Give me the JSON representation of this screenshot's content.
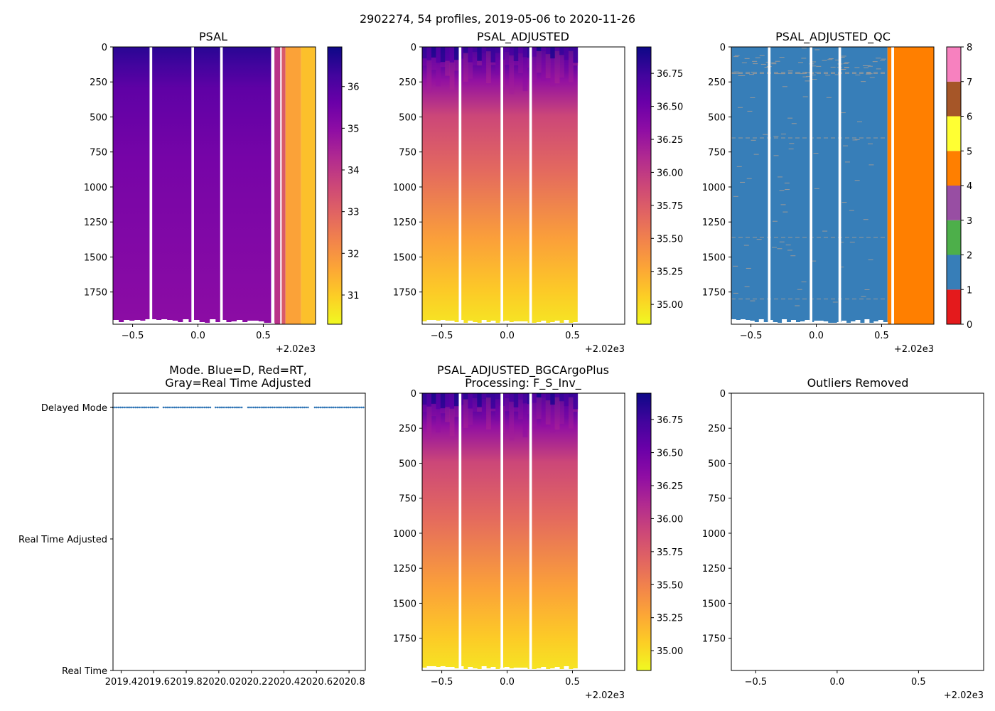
{
  "suptitle": "2902274, 54 profiles, 2019-05-06 to 2020-11-26",
  "colors": {
    "gap": "#ffffff",
    "dot": "#2e74b5",
    "qc_palette": [
      "#e41a1c",
      "#377eb8",
      "#4daf4a",
      "#984ea3",
      "#ff7f00",
      "#ffff33",
      "#a65628",
      "#f781bf",
      "#999999"
    ]
  },
  "chart_data": [
    {
      "id": "psal",
      "type": "heatmap",
      "title": "PSAL",
      "colormap": "plasma",
      "x_range": [
        -0.65,
        0.9
      ],
      "y_range": [
        0,
        1980
      ],
      "y_inverted": true,
      "x_ticks": [
        "−0.5",
        "0.0",
        "0.5"
      ],
      "x_tick_values": [
        -0.5,
        0.0,
        0.5
      ],
      "y_ticks": [
        "0",
        "250",
        "500",
        "750",
        "1000",
        "1250",
        "1500",
        "1750"
      ],
      "y_tick_values": [
        0,
        250,
        500,
        750,
        1000,
        1250,
        1500,
        1750
      ],
      "offset_label": "+2.02e3",
      "colorbar": {
        "range": [
          30.3,
          36.95
        ],
        "ticks": [
          "31",
          "32",
          "33",
          "34",
          "35",
          "36"
        ],
        "tick_values": [
          31,
          32,
          33,
          34,
          35,
          36
        ]
      },
      "gaps": [
        [
          -0.37,
          -0.35
        ],
        [
          -0.05,
          -0.03
        ],
        [
          0.17,
          0.19
        ],
        [
          0.56,
          0.585
        ],
        [
          0.63,
          0.64
        ]
      ],
      "surface_value": 36.6,
      "deep_value": 35.0,
      "fresh_segments": [
        {
          "from": 0.585,
          "to": 0.63,
          "value": 34.1
        },
        {
          "from": 0.64,
          "to": 0.67,
          "value": 33.2
        },
        {
          "from": 0.67,
          "to": 0.79,
          "value": 31.7
        },
        {
          "from": 0.79,
          "to": 0.9,
          "value": 31.2
        }
      ]
    },
    {
      "id": "psal_adjusted",
      "type": "heatmap",
      "title": "PSAL_ADJUSTED",
      "colormap": "plasma",
      "x_range": [
        -0.65,
        0.9
      ],
      "y_range": [
        0,
        1980
      ],
      "y_inverted": true,
      "x_ticks": [
        "−0.5",
        "0.0",
        "0.5"
      ],
      "x_tick_values": [
        -0.5,
        0.0,
        0.5
      ],
      "y_ticks": [
        "0",
        "250",
        "500",
        "750",
        "1000",
        "1250",
        "1500",
        "1750"
      ],
      "y_tick_values": [
        0,
        250,
        500,
        750,
        1000,
        1250,
        1500,
        1750
      ],
      "offset_label": "+2.02e3",
      "colorbar": {
        "range": [
          34.85,
          36.95
        ],
        "ticks": [
          "35.00",
          "35.25",
          "35.50",
          "35.75",
          "36.00",
          "36.25",
          "36.50",
          "36.75"
        ],
        "tick_values": [
          35.0,
          35.25,
          35.5,
          35.75,
          36.0,
          36.25,
          36.5,
          36.75
        ]
      },
      "data_x_max": 0.54,
      "gaps": [
        [
          -0.37,
          -0.35
        ],
        [
          -0.05,
          -0.03
        ],
        [
          0.17,
          0.19
        ]
      ],
      "surface_value": 36.9,
      "mid_value": 35.55,
      "deep_value": 34.95
    },
    {
      "id": "psal_adjusted_qc",
      "type": "heatmap",
      "title": "PSAL_ADJUSTED_QC",
      "colormap": "qc_categorical",
      "x_range": [
        -0.65,
        0.9
      ],
      "y_range": [
        0,
        1980
      ],
      "y_inverted": true,
      "x_ticks": [
        "−0.5",
        "0.0",
        "0.5"
      ],
      "x_tick_values": [
        -0.5,
        0.0,
        0.5
      ],
      "y_ticks": [
        "0",
        "250",
        "500",
        "750",
        "1000",
        "1250",
        "1500",
        "1750"
      ],
      "y_tick_values": [
        0,
        250,
        500,
        750,
        1000,
        1250,
        1500,
        1750
      ],
      "offset_label": "+2.02e3",
      "colorbar": {
        "range": [
          0,
          8
        ],
        "ticks": [
          "0",
          "1",
          "2",
          "3",
          "4",
          "5",
          "6",
          "7",
          "8"
        ],
        "tick_values": [
          0,
          1,
          2,
          3,
          4,
          5,
          6,
          7,
          8
        ]
      },
      "qc_segments": [
        {
          "from": -0.65,
          "to": 0.545,
          "flag": 1
        },
        {
          "from": 0.545,
          "to": 0.575,
          "flag": 4
        },
        {
          "from": 0.595,
          "to": 0.9,
          "flag": 4
        }
      ],
      "gaps": [
        [
          -0.37,
          -0.35
        ],
        [
          -0.05,
          -0.03
        ],
        [
          0.17,
          0.19
        ],
        [
          0.575,
          0.595
        ]
      ],
      "flag8_depths": [
        180,
        190,
        650,
        1360,
        1800
      ]
    },
    {
      "id": "mode",
      "type": "scatter",
      "title": "Mode. Blue=D, Red=RT,",
      "title_line2": "Gray=Real Time Adjusted",
      "x_range": [
        2019.35,
        2020.9
      ],
      "x_ticks": [
        "2019.4",
        "2019.6",
        "2019.8",
        "2020.0",
        "2020.2",
        "2020.4",
        "2020.6",
        "2020.8"
      ],
      "x_tick_values": [
        2019.4,
        2019.6,
        2019.8,
        2020.0,
        2020.2,
        2020.4,
        2020.6,
        2020.8
      ],
      "y_categories": [
        "Real Time",
        "Real Time Adjusted",
        "Delayed Mode"
      ],
      "series": [
        {
          "name": "D",
          "mode": "Delayed Mode",
          "segments": [
            [
              2019.35,
              2019.63
            ],
            [
              2019.66,
              2019.95
            ],
            [
              2019.98,
              2020.15
            ],
            [
              2020.18,
              2020.55
            ],
            [
              2020.59,
              2020.9
            ]
          ],
          "step": 0.0115
        }
      ]
    },
    {
      "id": "bgc_argo_plus",
      "type": "heatmap",
      "title": "PSAL_ADJUSTED_BGCArgoPlus",
      "title_line2": "Processing: F_S_Inv_",
      "colormap": "plasma",
      "x_range": [
        -0.65,
        0.9
      ],
      "y_range": [
        0,
        1980
      ],
      "y_inverted": true,
      "x_ticks": [
        "−0.5",
        "0.0",
        "0.5"
      ],
      "x_tick_values": [
        -0.5,
        0.0,
        0.5
      ],
      "y_ticks": [
        "0",
        "250",
        "500",
        "750",
        "1000",
        "1250",
        "1500",
        "1750"
      ],
      "y_tick_values": [
        0,
        250,
        500,
        750,
        1000,
        1250,
        1500,
        1750
      ],
      "offset_label": "+2.02e3",
      "colorbar": {
        "range": [
          34.85,
          36.95
        ],
        "ticks": [
          "35.00",
          "35.25",
          "35.50",
          "35.75",
          "36.00",
          "36.25",
          "36.50",
          "36.75"
        ],
        "tick_values": [
          35.0,
          35.25,
          35.5,
          35.75,
          36.0,
          36.25,
          36.5,
          36.75
        ]
      },
      "data_x_max": 0.54,
      "gaps": [
        [
          -0.37,
          -0.35
        ],
        [
          -0.05,
          -0.03
        ],
        [
          0.17,
          0.19
        ]
      ],
      "surface_value": 36.9,
      "mid_value": 35.55,
      "deep_value": 34.95
    },
    {
      "id": "outliers",
      "type": "scatter",
      "title": "Outliers Removed",
      "x_range": [
        -0.65,
        0.9
      ],
      "y_range": [
        0,
        1980
      ],
      "y_inverted": true,
      "x_ticks": [
        "−0.5",
        "0.0",
        "0.5"
      ],
      "x_tick_values": [
        -0.5,
        0.0,
        0.5
      ],
      "y_ticks": [
        "0",
        "250",
        "500",
        "750",
        "1000",
        "1250",
        "1500",
        "1750"
      ],
      "y_tick_values": [
        0,
        250,
        500,
        750,
        1000,
        1250,
        1500,
        1750
      ],
      "offset_label": "+2.02e3",
      "points": []
    }
  ]
}
